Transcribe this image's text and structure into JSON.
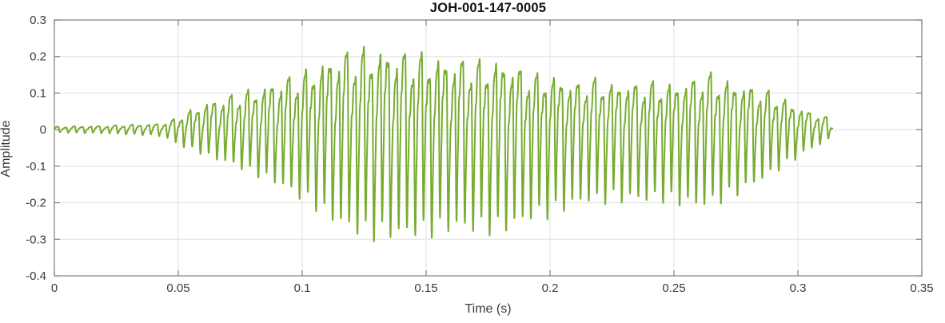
{
  "chart_data": {
    "type": "line",
    "title": "JOH-001-147-0005",
    "xlabel": "Time (s)",
    "ylabel": "Amplitude",
    "xlim": [
      0,
      0.35
    ],
    "ylim": [
      -0.4,
      0.3
    ],
    "xticks": [
      0,
      0.05,
      0.1,
      0.15,
      0.2,
      0.25,
      0.3,
      0.35
    ],
    "xtick_labels": [
      "0",
      "0.05",
      "0.1",
      "0.15",
      "0.2",
      "0.25",
      "0.3",
      "0.35"
    ],
    "yticks": [
      0.3,
      0.2,
      0.1,
      0,
      -0.1,
      -0.2,
      -0.3,
      -0.4
    ],
    "ytick_labels": [
      "0.3",
      "0.2",
      "0.1",
      "0",
      "-0.1",
      "-0.2",
      "-0.3",
      "-0.4"
    ],
    "grid": true,
    "legend": null,
    "line_color": "#77AC30",
    "line_width": 2,
    "grid_color": "#e0e0e0",
    "axis_color": "#878787",
    "text_color": "#3b3b3b",
    "background": "#ffffff",
    "signal": {
      "description": "speech waveform: quiet noise until ~0.048s, voiced segment ~0.05-0.314s",
      "f0_hz": 300,
      "sub_mod_hz": 129,
      "sample_rate": 16000,
      "start_s": 0,
      "end_s": 0.314,
      "harmonic_amps": [
        1.0,
        0.5,
        0.25,
        0.12,
        0.06
      ],
      "harmonic_phases": [
        0,
        2.2,
        4.4,
        1.0,
        3.0
      ],
      "sub_mod_amp": 0.18,
      "envelope_t": [
        0,
        0.005,
        0.01,
        0.015,
        0.02,
        0.025,
        0.03,
        0.035,
        0.04,
        0.045,
        0.05,
        0.055,
        0.06,
        0.065,
        0.07,
        0.075,
        0.08,
        0.085,
        0.09,
        0.095,
        0.1,
        0.105,
        0.11,
        0.115,
        0.12,
        0.125,
        0.13,
        0.135,
        0.14,
        0.145,
        0.15,
        0.155,
        0.16,
        0.165,
        0.17,
        0.175,
        0.18,
        0.185,
        0.19,
        0.195,
        0.2,
        0.205,
        0.21,
        0.215,
        0.22,
        0.225,
        0.23,
        0.235,
        0.24,
        0.245,
        0.25,
        0.255,
        0.26,
        0.265,
        0.27,
        0.275,
        0.28,
        0.285,
        0.29,
        0.295,
        0.3,
        0.305,
        0.31,
        0.3125,
        0.314
      ],
      "envelope_upper": [
        0.008,
        0.009,
        0.01,
        0.01,
        0.011,
        0.012,
        0.014,
        0.015,
        0.016,
        0.02,
        0.035,
        0.055,
        0.075,
        0.085,
        0.095,
        0.105,
        0.115,
        0.125,
        0.14,
        0.15,
        0.16,
        0.18,
        0.2,
        0.215,
        0.225,
        0.228,
        0.228,
        0.225,
        0.22,
        0.215,
        0.212,
        0.205,
        0.2,
        0.198,
        0.195,
        0.19,
        0.198,
        0.185,
        0.165,
        0.155,
        0.155,
        0.145,
        0.13,
        0.14,
        0.145,
        0.13,
        0.135,
        0.13,
        0.135,
        0.13,
        0.13,
        0.14,
        0.15,
        0.158,
        0.14,
        0.135,
        0.125,
        0.115,
        0.105,
        0.085,
        0.065,
        0.05,
        0.04,
        0.032,
        0.005
      ],
      "envelope_lower": [
        -0.008,
        -0.009,
        -0.01,
        -0.01,
        -0.011,
        -0.012,
        -0.014,
        -0.015,
        -0.016,
        -0.022,
        -0.045,
        -0.055,
        -0.07,
        -0.085,
        -0.095,
        -0.11,
        -0.125,
        -0.14,
        -0.155,
        -0.175,
        -0.2,
        -0.22,
        -0.25,
        -0.27,
        -0.29,
        -0.303,
        -0.307,
        -0.305,
        -0.305,
        -0.3,
        -0.3,
        -0.295,
        -0.285,
        -0.285,
        -0.29,
        -0.29,
        -0.29,
        -0.28,
        -0.26,
        -0.25,
        -0.245,
        -0.23,
        -0.215,
        -0.205,
        -0.21,
        -0.2,
        -0.205,
        -0.2,
        -0.205,
        -0.2,
        -0.21,
        -0.215,
        -0.22,
        -0.215,
        -0.2,
        -0.185,
        -0.165,
        -0.145,
        -0.125,
        -0.1,
        -0.08,
        -0.055,
        -0.04,
        -0.028,
        -0.005
      ]
    }
  }
}
